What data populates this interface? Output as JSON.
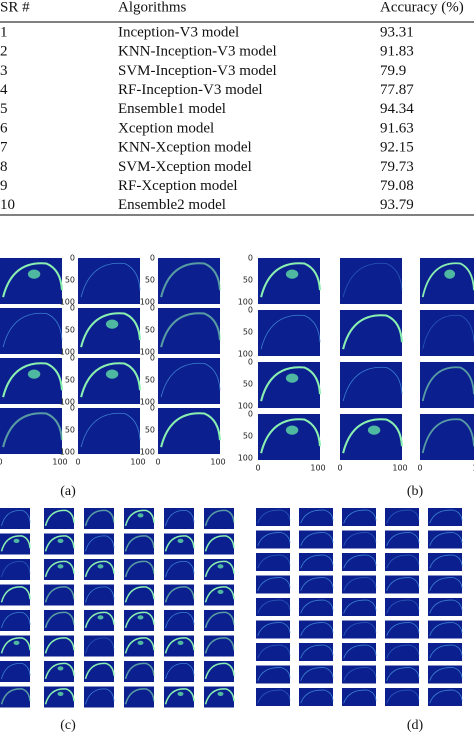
{
  "table": {
    "header": [
      "SR #",
      "Algorithms",
      "Accuracy (%)"
    ],
    "rows": [
      [
        "1",
        "Inception-V3 model",
        "93.31"
      ],
      [
        "2",
        "KNN-Inception-V3 model",
        "91.83"
      ],
      [
        "3",
        "SVM-Inception-V3 model",
        "79.9"
      ],
      [
        "4",
        "RF-Inception-V3 model",
        "77.87"
      ],
      [
        "5",
        "Ensemble1 model",
        "94.34"
      ],
      [
        "6",
        "Xception model",
        "91.63"
      ],
      [
        "7",
        "KNN-Xception model",
        "92.15"
      ],
      [
        "8",
        "SVM-Xception model",
        "79.73"
      ],
      [
        "9",
        "RF-Xception model",
        "79.08"
      ],
      [
        "10",
        "Ensemble2 model",
        "93.79"
      ]
    ]
  },
  "figure": {
    "panels": [
      {
        "label": "(a)",
        "yticks": [
          "0",
          "50",
          "100"
        ],
        "xticks": [
          "0",
          "100"
        ]
      },
      {
        "label": "(b)",
        "yticks": [
          "0",
          "50",
          "100"
        ],
        "xticks": [
          "0",
          "100"
        ]
      },
      {
        "label": "(c)"
      },
      {
        "label": "(d)"
      }
    ]
  }
}
